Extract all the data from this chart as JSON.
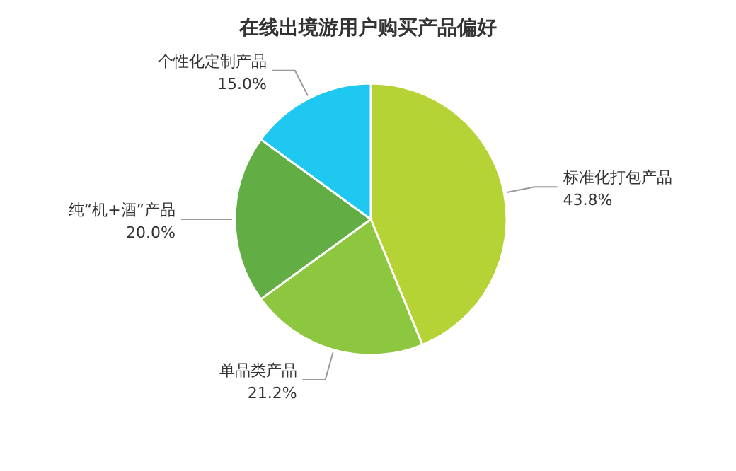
{
  "chart_data": {
    "type": "pie",
    "title": "在线出境游用户购买产品偏好",
    "categories": [
      "标准化打包产品",
      "单品类产品",
      "纯“机+酒”产品",
      "个性化定制产品"
    ],
    "values": [
      43.8,
      21.2,
      20.0,
      15.0
    ],
    "value_labels": [
      "43.8%",
      "21.2%",
      "20.0%",
      "15.0%"
    ],
    "colors": [
      "#b5d334",
      "#8dc63f",
      "#62ae45",
      "#1ec8f0"
    ]
  }
}
